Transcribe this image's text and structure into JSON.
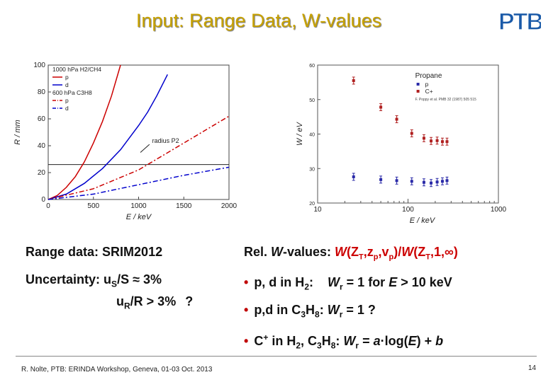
{
  "title": "Input: Range Data, W-values",
  "logo": {
    "text": "PTB",
    "color": "#1a5aa8"
  },
  "chart_data": [
    {
      "type": "line",
      "xlabel": "E / keV",
      "ylabel": "R / mm",
      "xlim": [
        0,
        2000
      ],
      "ylim": [
        0,
        100
      ],
      "xticks": [
        "0",
        "500",
        "1000",
        "1500",
        "2000"
      ],
      "yticks": [
        "0",
        "20",
        "40",
        "60",
        "80",
        "100"
      ],
      "legend_lines": [
        "1000 hPa H2/CH4",
        "p",
        "d",
        "600 hPa C3H8",
        "p",
        "d"
      ],
      "annotation": "radius P2",
      "reference_line_y": 26,
      "series": [
        {
          "name": "p",
          "group": "1000 hPa H2/CH4",
          "color": "#cc0000",
          "dash": "solid",
          "x": [
            0,
            100,
            200,
            300,
            400,
            500,
            600,
            700,
            800
          ],
          "y": [
            0,
            3,
            9,
            17,
            28,
            42,
            58,
            77,
            100
          ]
        },
        {
          "name": "d",
          "group": "1000 hPa H2/CH4",
          "color": "#0000cc",
          "dash": "solid",
          "x": [
            0,
            200,
            400,
            600,
            800,
            1000,
            1100,
            1200,
            1320
          ],
          "y": [
            0,
            4,
            12,
            23,
            37,
            55,
            65,
            77,
            93
          ]
        },
        {
          "name": "p",
          "group": "600 hPa C3H8",
          "color": "#cc0000",
          "dash": "dashdot",
          "x": [
            0,
            500,
            1000,
            1500,
            2000
          ],
          "y": [
            0,
            8,
            22,
            42,
            62
          ]
        },
        {
          "name": "d",
          "group": "600 hPa C3H8",
          "color": "#0000cc",
          "dash": "dashdot",
          "x": [
            0,
            500,
            1000,
            1500,
            2000
          ],
          "y": [
            0,
            4,
            11,
            18,
            24
          ]
        }
      ]
    },
    {
      "type": "scatter",
      "xlabel": "E / keV",
      "ylabel": "W / eV",
      "xscale": "log",
      "xlim": [
        10,
        1000
      ],
      "ylim": [
        20,
        60
      ],
      "xticks": [
        "10",
        "100",
        "1000"
      ],
      "yticks": [
        "20",
        "30",
        "40",
        "50",
        "60"
      ],
      "legend_title": "Propane",
      "legend": [
        "p",
        "C+"
      ],
      "reference": "F. Poppy et al. PMB 32 (1987) 505 515",
      "series": [
        {
          "name": "p",
          "color": "#2a2aa8",
          "x": [
            25,
            50,
            75,
            110,
            150,
            180,
            210,
            240,
            270
          ],
          "y": [
            27.6,
            26.8,
            26.5,
            26.3,
            26.0,
            25.8,
            26.1,
            26.3,
            26.5
          ]
        },
        {
          "name": "C+",
          "color": "#b02020",
          "x": [
            25,
            50,
            75,
            110,
            150,
            180,
            210,
            240,
            270
          ],
          "y": [
            55.5,
            47.8,
            44.3,
            40.2,
            38.8,
            38.0,
            38.1,
            37.8,
            37.8
          ]
        }
      ]
    }
  ],
  "left_text": {
    "range_label": "Range data:",
    "range_value": "SRIM2012",
    "unc_label": "Uncertainty:",
    "unc1": "uS/S ≈ 3%",
    "unc2": "uR/R > 3%",
    "unc2_suffix": "?"
  },
  "right_text": {
    "rel_label": "Rel. W-values:",
    "rel_value": "W(ZT,zp,vp)/W(ZT,1,∞)",
    "b1": "p, d in H2:   Wr = 1 for E > 10 keV",
    "b2": "p,d in C3H8: Wr = 1 ?",
    "b3": "C+ in H2, C3H8: Wr = a·log(E) + b"
  },
  "footer": "R. Nolte, PTB: ERINDA Workshop, Geneva, 01-03 Oct. 2013",
  "page_number": "14"
}
